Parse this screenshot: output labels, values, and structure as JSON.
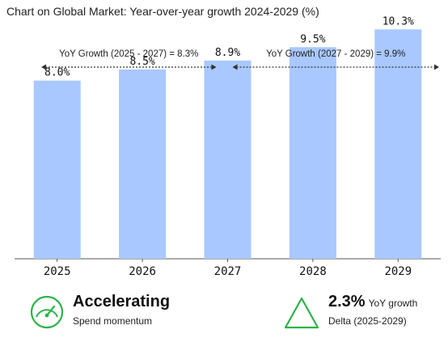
{
  "title": "Chart on Global Market: Year-over-year growth 2024-2029 (%)",
  "chart_data": {
    "type": "bar",
    "categories": [
      "2025",
      "2026",
      "2027",
      "2028",
      "2029"
    ],
    "values": [
      8.0,
      8.5,
      8.9,
      9.5,
      10.3
    ],
    "value_labels": [
      "8.0%",
      "8.5%",
      "8.9%",
      "9.5%",
      "10.3%"
    ],
    "ylim": [
      0,
      11
    ],
    "grid": false,
    "bar_color": "#a9c8ff",
    "annotations": [
      {
        "text": "YoY Growth (2025 - 2027) = 8.3%",
        "from": "2025",
        "to": "2027"
      },
      {
        "text": "YoY Growth (2027 - 2029) = 9.9%",
        "from": "2027",
        "to": "2029"
      }
    ]
  },
  "footer": {
    "left": {
      "icon": "speedometer-icon",
      "headline": "Accelerating",
      "caption": "Spend momentum",
      "color": "#2db34a"
    },
    "right": {
      "icon": "triangle-icon",
      "value": "2.3%",
      "unit": "YoY growth",
      "caption": "Delta (2025-2029)",
      "color": "#2db34a"
    }
  }
}
